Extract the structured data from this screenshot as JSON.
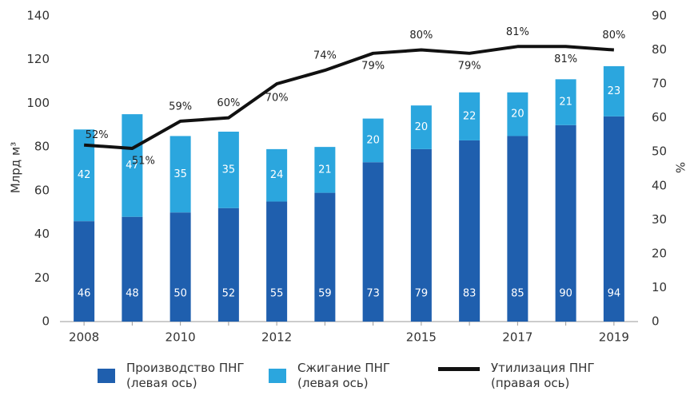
{
  "chart_data": {
    "type": "bar",
    "categories": [
      "2008",
      null,
      "2010",
      null,
      "2012",
      null,
      null,
      "2015",
      null,
      "2017",
      null,
      "2019"
    ],
    "stacked": true,
    "series": [
      {
        "name": "Производство ПНГ (левая ось)",
        "color": "#1f5fae",
        "values": [
          46,
          48,
          50,
          52,
          55,
          59,
          73,
          79,
          83,
          85,
          90,
          94
        ]
      },
      {
        "name": "Сжигание ПНГ (левая ось)",
        "color": "#2ba6de",
        "values": [
          42,
          47,
          35,
          35,
          24,
          21,
          20,
          20,
          22,
          20,
          21,
          23
        ]
      },
      {
        "name": "Утилизация ПНГ (правая ось)",
        "color": "#111111",
        "type": "line",
        "axis": "y2",
        "values": [
          52,
          51,
          59,
          60,
          70,
          74,
          79,
          80,
          79,
          81,
          81,
          80
        ],
        "value_labels": [
          "52%",
          "51%",
          "59%",
          "60%",
          "70%",
          "74%",
          "79%",
          "80%",
          "79%",
          "81%",
          "81%",
          "80%"
        ]
      }
    ],
    "ylabel": "Млрд м³",
    "y2label": "%",
    "ylim": [
      0,
      140
    ],
    "yticks": [
      0,
      20,
      40,
      60,
      80,
      100,
      120,
      140
    ],
    "y2lim": [
      0,
      90
    ],
    "y2ticks": [
      0,
      10,
      20,
      30,
      40,
      50,
      60,
      70,
      80,
      90
    ],
    "legend": "bottom"
  }
}
